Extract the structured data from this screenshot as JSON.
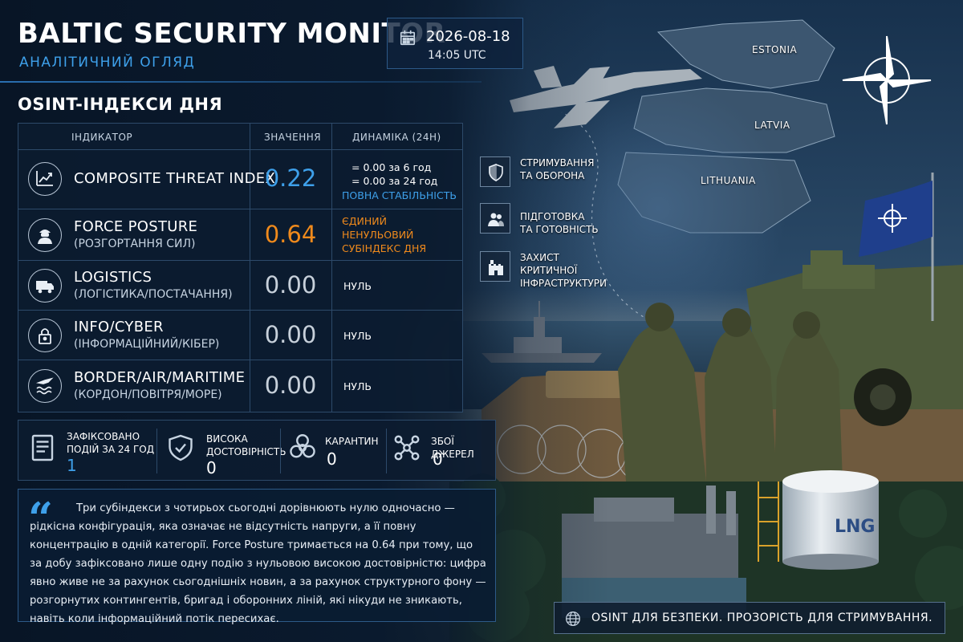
{
  "header": {
    "title": "BALTIC SECURITY MONITOR",
    "subtitle": "АНАЛІТИЧНИЙ ОГЛЯД",
    "date": "2026-08-18",
    "time": "14:05 UTC"
  },
  "section_title": "OSINT-ІНДЕКСИ ДНЯ",
  "table": {
    "headers": {
      "indicator": "ІНДИКАТОР",
      "value": "ЗНАЧЕННЯ",
      "dynamics": "ДИНАМІКА (24Н)"
    },
    "rows": [
      {
        "icon": "trend-chart-icon",
        "name": "COMPOSITE THREAT INDEX",
        "sub": "",
        "value": "0.22",
        "value_color": "#3ea0ea",
        "dyn1": "= 0.00 за 6 год",
        "dyn2": "= 0.00 за 24 год",
        "dyn3": "ПОВНА СТАБІЛЬНІСТЬ"
      },
      {
        "icon": "soldier-icon",
        "name": "FORCE POSTURE",
        "sub": "(РОЗГОРТАННЯ СИЛ)",
        "value": "0.64",
        "value_color": "#f08a1c",
        "dyn1": "ЄДИНИЙ",
        "dyn2": "НЕНУЛЬОВИЙ",
        "dyn3": "СУБІНДЕКС ДНЯ"
      },
      {
        "icon": "truck-icon",
        "name": "LOGISTICS",
        "sub": "(ЛОГІСТИКА/ПОСТАЧАННЯ)",
        "value": "0.00",
        "value_color": "#c7d0da",
        "dyn1": "НУЛЬ"
      },
      {
        "icon": "padlock-icon",
        "name": "INFO/CYBER",
        "sub": "(ІНФОРМАЦІЙНИЙ/КІБЕР)",
        "value": "0.00",
        "value_color": "#c7d0da",
        "dyn1": "НУЛЬ"
      },
      {
        "icon": "plane-waves-icon",
        "name": "BORDER/AIR/MARITIME",
        "sub": "(КОРДОН/ПОВІТРЯ/МОРЕ)",
        "value": "0.00",
        "value_color": "#c7d0da",
        "dyn1": "НУЛЬ"
      }
    ]
  },
  "stats": [
    {
      "icon": "document-icon",
      "label1": "ЗАФІКСОВАНО",
      "label2": "ПОДІЙ ЗА 24 ГОД",
      "value": "1",
      "color": "#3ea0ea"
    },
    {
      "icon": "shield-check-icon",
      "label1": "ВИСОКА",
      "label2": "ДОСТОВІРНІСТЬ",
      "value": "0",
      "color": "#ffffff"
    },
    {
      "icon": "biohazard-icon",
      "label1": "КАРАНТИН",
      "label2": "",
      "value": "0",
      "color": "#ffffff"
    },
    {
      "icon": "network-nodes-icon",
      "label1": "ЗБОЇ ДЖЕРЕЛ",
      "label2": "",
      "value": "0",
      "color": "#ffffff"
    }
  ],
  "quote": "Три субіндекси з чотирьох сьогодні дорівнюють нулю одночасно — рідкісна конфігурація, яка означає не відсутність напруги, а її повну концентрацію в одній категорії. Force Posture тримається на 0.64 при тому, що за добу зафіксовано лише одну подію з нульовою високою достовірністю: цифра явно живе не за рахунок сьогоднішніх новин, а за рахунок структурного фону — розгорнутих контингентів, бригад і оборонних ліній, які нікуди не зникають, навіть коли інформаційний потік пересихає.",
  "map": {
    "estonia": "ESTONIA",
    "latvia": "LATVIA",
    "lithuania": "LITHUANIA"
  },
  "features": [
    {
      "icon": "shield-icon",
      "line1": "СТРИМУВАННЯ",
      "line2": "ТА ОБОРОНА",
      "line3": ""
    },
    {
      "icon": "people-icon",
      "line1": "ПІДГОТОВКА",
      "line2": "ТА ГОТОВНІСТЬ",
      "line3": ""
    },
    {
      "icon": "castle-icon",
      "line1": "ЗАХИСТ",
      "line2": "КРИТИЧНОЇ",
      "line3": "ІНФРАСТРУКТУРИ"
    }
  ],
  "tank_label": "LNG",
  "footer": "OSINT ДЛЯ БЕЗПЕКИ. ПРОЗОРІСТЬ ДЛЯ СТРИМУВАННЯ."
}
